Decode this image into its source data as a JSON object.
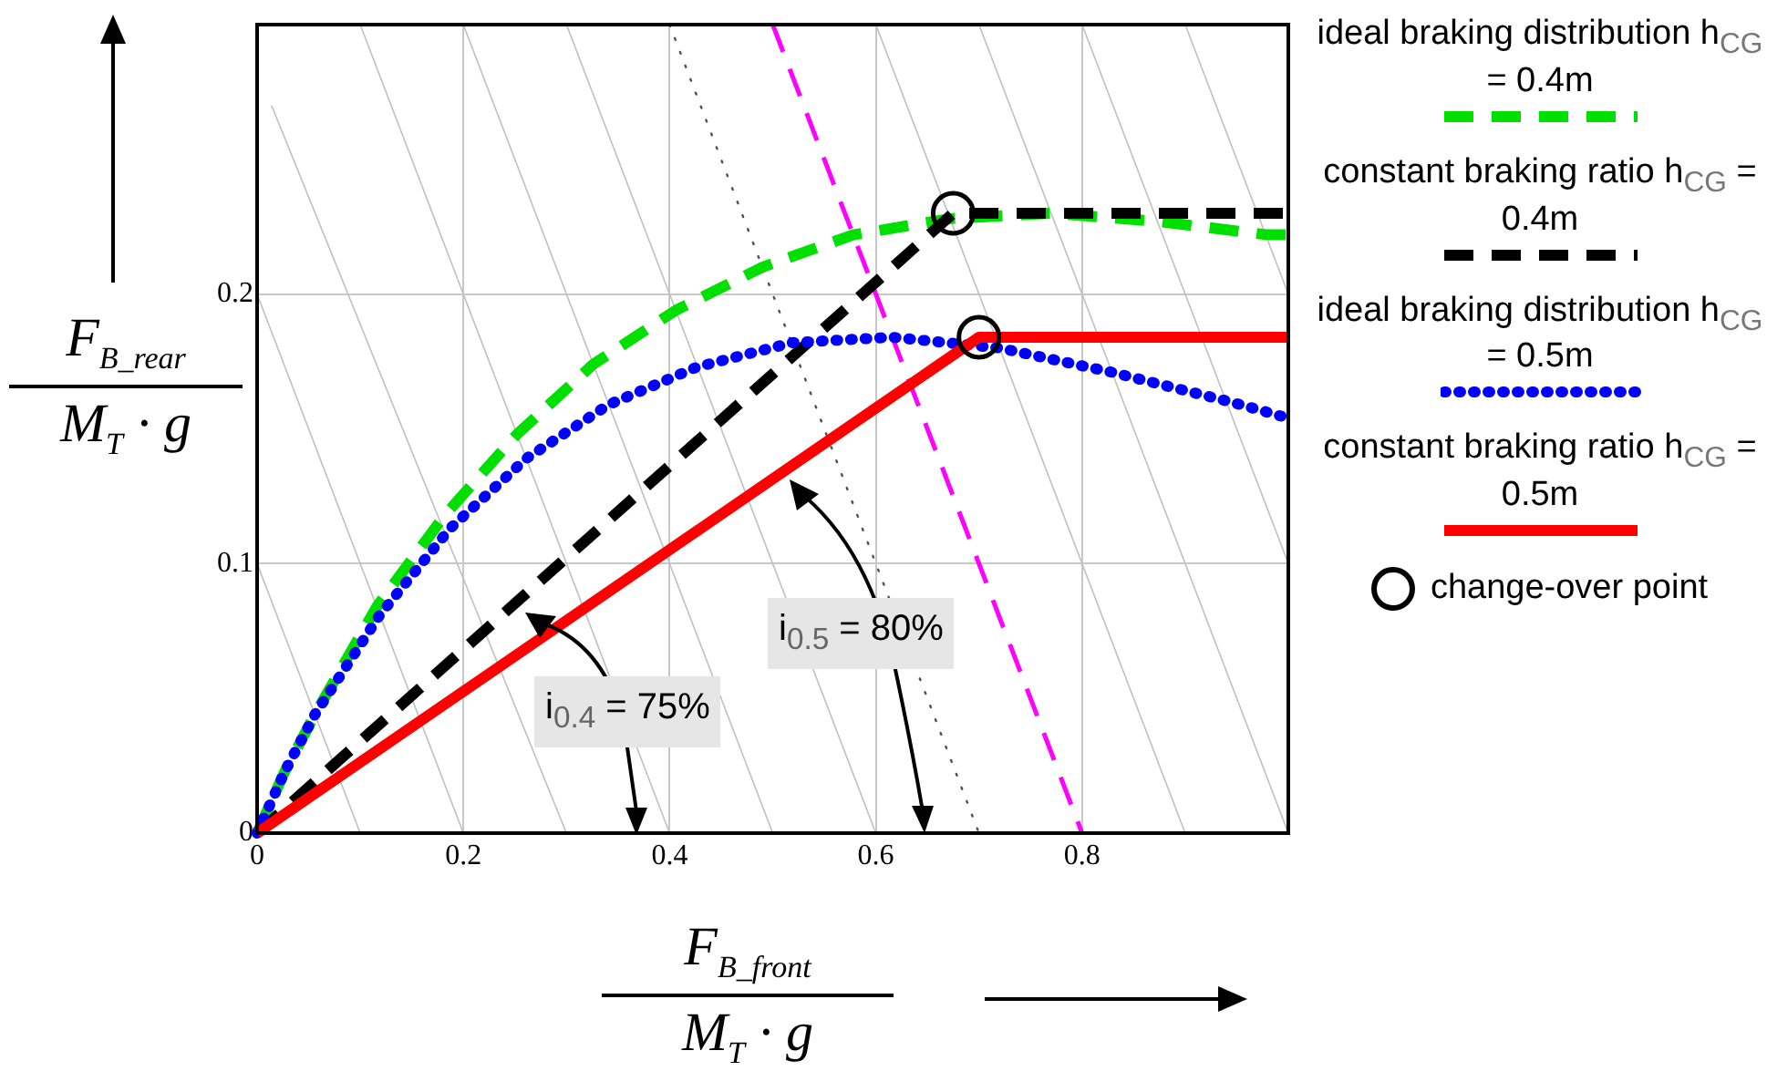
{
  "chart_data": {
    "type": "line",
    "xlabel": "F$_{B_front}$ M$_{T}$ · g",
    "ylabel": "F$_{B_rear}$ M$_{T}$ · g",
    "xlim": [
      0,
      1
    ],
    "ylim": [
      0,
      0.3
    ],
    "xticks": [
      0,
      0.2,
      0.4,
      0.6,
      0.8
    ],
    "yticks": [
      0,
      0.1,
      0.2
    ],
    "grid": true,
    "legend": "right",
    "annotations": [
      "i$_{0.4}$ = 75%",
      "i$_{0.5}$ = 80%"
    ],
    "series": [
      {
        "color": "#c0c0c0",
        "line_style": "solid",
        "x": [
          0,
          0.1
        ],
        "values": [
          0.1,
          0
        ]
      },
      {
        "color": "#c0c0c0",
        "line_style": "solid",
        "x": [
          0,
          0.2
        ],
        "values": [
          0.2,
          0
        ]
      },
      {
        "color": "#c0c0c0",
        "line_style": "solid",
        "x": [
          0.014,
          0.3
        ],
        "values": [
          0.27,
          0
        ]
      },
      {
        "color": "#c0c0c0",
        "line_style": "solid",
        "x": [
          0.1,
          0.4
        ],
        "values": [
          0.3,
          0
        ]
      },
      {
        "color": "#c0c0c0",
        "line_style": "solid",
        "x": [
          0.2,
          0.5
        ],
        "values": [
          0.3,
          0
        ]
      },
      {
        "color": "#c0c0c0",
        "line_style": "solid",
        "x": [
          0.3,
          0.6
        ],
        "values": [
          0.3,
          0
        ]
      },
      {
        "color": "#c0c0c0",
        "line_style": "solid",
        "x": [
          0.6,
          0.9
        ],
        "values": [
          0.3,
          0
        ]
      },
      {
        "color": "#c0c0c0",
        "line_style": "solid",
        "x": [
          0.7,
          1
        ],
        "values": [
          0.3,
          0
        ]
      },
      {
        "color": "#c0c0c0",
        "line_style": "solid",
        "x": [
          0.8,
          1
        ],
        "values": [
          0.3,
          0.1
        ]
      },
      {
        "color": "#c0c0c0",
        "line_style": "solid",
        "x": [
          0.9,
          1
        ],
        "values": [
          0.3,
          0.2
        ]
      },
      {
        "color": "#505050",
        "line_style": "dotted",
        "x": [
          0.4,
          0.7
        ],
        "values": [
          0.3,
          0
        ]
      },
      {
        "color": "#ff00ff",
        "line_style": "dashed",
        "x": [
          0.5,
          0.8
        ],
        "values": [
          0.3,
          0
        ]
      },
      {
        "name": "ideal braking distribution h$_{CG}$ = 0.4m",
        "color": "#00e000",
        "line_style": "dashed",
        "x": [
          0,
          0.027,
          0.056,
          0.116,
          0.182,
          0.252,
          0.326,
          0.406,
          0.49,
          0.578,
          0.672,
          0.77,
          0.873,
          0.98,
          1
        ],
        "values": [
          0,
          0.023,
          0.044,
          0.084,
          0.118,
          0.148,
          0.174,
          0.194,
          0.21,
          0.222,
          0.228,
          0.23,
          0.227,
          0.222,
          0.222
        ]
      },
      {
        "name": "constant braking ratio h$_{CG}$ = 0.4m",
        "color": "#000000",
        "line_style": "dashed",
        "x": [
          0,
          0.675,
          1
        ],
        "values": [
          0,
          0.23,
          0.23
        ]
      },
      {
        "name": "ideal braking distribution h$_{CG}$ = 0.5m",
        "color": "#0000ff",
        "line_style": "dotted",
        "x": [
          0,
          0.027,
          0.056,
          0.119,
          0.187,
          0.261,
          0.341,
          0.427,
          0.519,
          0.616,
          0.72,
          0.829,
          0.944,
          1
        ],
        "values": [
          0,
          0.023,
          0.044,
          0.081,
          0.113,
          0.139,
          0.159,
          0.173,
          0.182,
          0.184,
          0.18,
          0.171,
          0.16,
          0.154
        ]
      },
      {
        "name": "constant braking ratio h$_{CG}$ = 0.5m",
        "color": "#ff0000",
        "line_style": "solid",
        "x": [
          0,
          0.7,
          1
        ],
        "values": [
          0,
          0.184,
          0.184
        ]
      },
      {
        "name": "change-over point",
        "type": "scatter",
        "color": "#000000",
        "marker": "circle",
        "x": [
          0.675,
          0.7
        ],
        "values": [
          0.23,
          0.184
        ]
      }
    ]
  }
}
